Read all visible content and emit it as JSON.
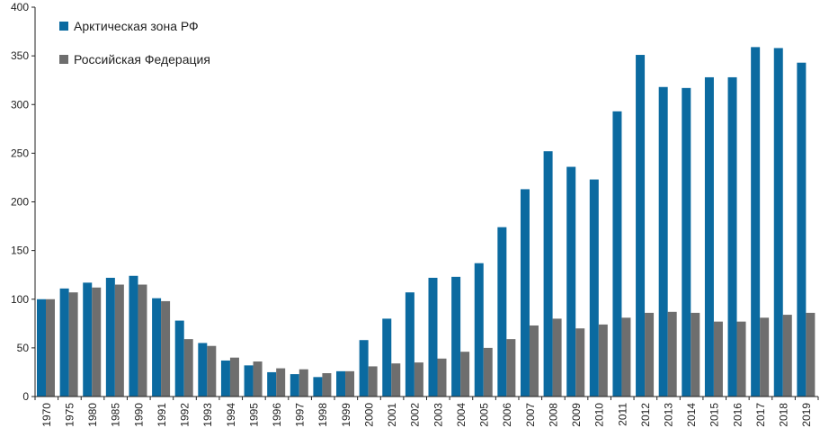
{
  "chart_data": {
    "type": "bar",
    "title": "",
    "xlabel": "",
    "ylabel": "",
    "ylim": [
      0,
      400
    ],
    "yticks": [
      0,
      50,
      100,
      150,
      200,
      250,
      300,
      350,
      400
    ],
    "grid": false,
    "legend_position": "top-left",
    "categories": [
      "1970",
      "1975",
      "1980",
      "1985",
      "1990",
      "1991",
      "1992",
      "1993",
      "1994",
      "1995",
      "1996",
      "1997",
      "1998",
      "1999",
      "2000",
      "2001",
      "2002",
      "2003",
      "2004",
      "2005",
      "2006",
      "2007",
      "2008",
      "2009",
      "2010",
      "2011",
      "2012",
      "2013",
      "2014",
      "2015",
      "2016",
      "2017",
      "2018",
      "2019"
    ],
    "series": [
      {
        "name": "Арктическая зона РФ",
        "color": "#0b6aa0",
        "values": [
          100,
          111,
          117,
          122,
          124,
          101,
          78,
          55,
          37,
          32,
          25,
          23,
          20,
          26,
          58,
          80,
          107,
          122,
          123,
          137,
          174,
          213,
          252,
          236,
          223,
          293,
          351,
          318,
          317,
          328,
          328,
          359,
          358,
          343
        ]
      },
      {
        "name": "Российская Федерация",
        "color": "#6e6e6e",
        "values": [
          100,
          107,
          112,
          115,
          115,
          98,
          59,
          52,
          40,
          36,
          29,
          28,
          24,
          26,
          31,
          34,
          35,
          39,
          46,
          50,
          59,
          73,
          80,
          70,
          74,
          81,
          86,
          87,
          86,
          77,
          77,
          81,
          84,
          86
        ]
      }
    ]
  }
}
